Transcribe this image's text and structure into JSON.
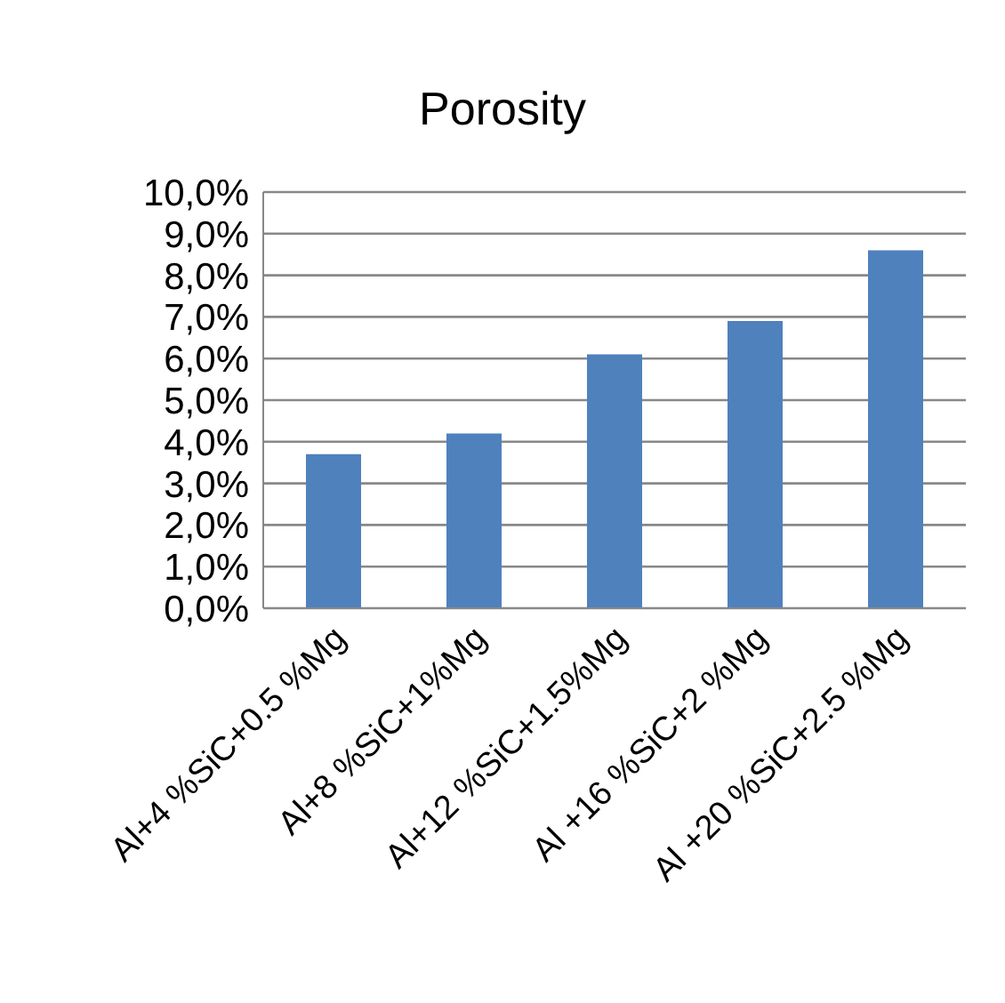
{
  "chart_data": {
    "type": "bar",
    "title": "Porosity",
    "categories": [
      "Al+4 %SiC+0.5 %Mg",
      "Al+8 %SiC+1%Mg",
      "Al+12 %SiC+1.5%Mg",
      "Al +16 %SiC+2 %Mg",
      "Al +20 %SiC+2.5 %Mg"
    ],
    "values": [
      3.7,
      4.2,
      6.1,
      6.9,
      8.6
    ],
    "color": "#4f81bd",
    "ylim": [
      0,
      10
    ],
    "yticks": [
      {
        "value": 0,
        "label": "0,0%"
      },
      {
        "value": 1,
        "label": "1,0%"
      },
      {
        "value": 2,
        "label": "2,0%"
      },
      {
        "value": 3,
        "label": "3,0%"
      },
      {
        "value": 4,
        "label": "4,0%"
      },
      {
        "value": 5,
        "label": "5,0%"
      },
      {
        "value": 6,
        "label": "6,0%"
      },
      {
        "value": 7,
        "label": "7,0%"
      },
      {
        "value": 8,
        "label": "8,0%"
      },
      {
        "value": 9,
        "label": "9,0%"
      },
      {
        "value": 10,
        "label": "10,0%"
      }
    ],
    "grid": "y",
    "legend": false
  }
}
